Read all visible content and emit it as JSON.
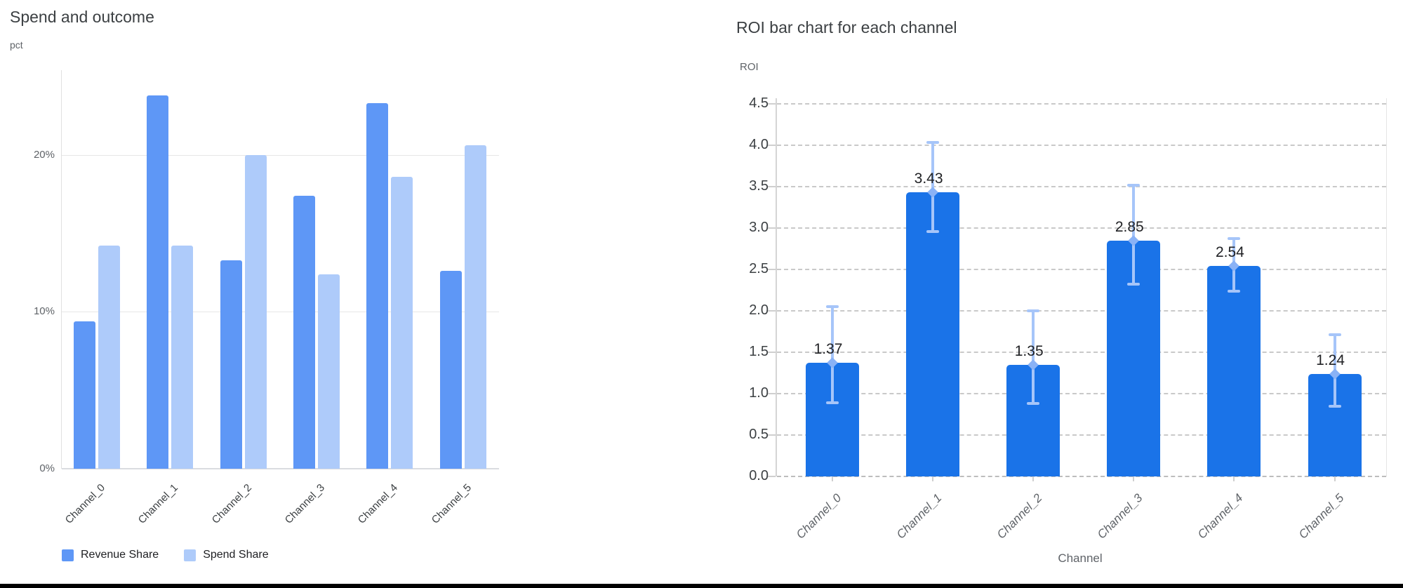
{
  "page": {
    "background": "#ffffff",
    "bottom_border_color": "#000000"
  },
  "chart_data": [
    {
      "type": "bar",
      "title": "Spend and outcome",
      "ylabel": "pct",
      "xlabel": "",
      "categories": [
        "Channel_0",
        "Channel_1",
        "Channel_2",
        "Channel_3",
        "Channel_4",
        "Channel_5"
      ],
      "series": [
        {
          "name": "Revenue Share",
          "color": "#5e97f6",
          "values": [
            9.4,
            23.8,
            13.3,
            17.4,
            23.3,
            12.6
          ]
        },
        {
          "name": "Spend Share",
          "color": "#aecbfa",
          "values": [
            14.2,
            14.2,
            20.0,
            12.4,
            18.6,
            20.6
          ]
        }
      ],
      "yticks": [
        {
          "value": 0,
          "label": "0%"
        },
        {
          "value": 10,
          "label": "10%"
        },
        {
          "value": 20,
          "label": "20%"
        }
      ],
      "ylim": [
        0,
        25.4
      ],
      "grid": "solid",
      "legend_position": "bottom",
      "value_unit": "percent"
    },
    {
      "type": "bar",
      "title": "ROI bar chart for each channel",
      "ylabel": "ROI",
      "xlabel": "Channel",
      "categories": [
        "Channel_0",
        "Channel_1",
        "Channel_2",
        "Channel_3",
        "Channel_4",
        "Channel_5"
      ],
      "values": [
        1.37,
        3.43,
        1.35,
        2.85,
        2.54,
        1.24
      ],
      "value_labels": [
        "1.37",
        "3.43",
        "1.35",
        "2.85",
        "2.54",
        "1.24"
      ],
      "error_low": [
        0.89,
        2.96,
        0.88,
        2.32,
        2.24,
        0.85
      ],
      "error_high": [
        2.05,
        4.03,
        2.0,
        3.52,
        2.87,
        1.71
      ],
      "bar_color": "#1a73e8",
      "error_color": "#a6c5f9",
      "error_marker_color": "#8ab2f6",
      "yticks": [
        {
          "value": 0.0,
          "label": "0.0"
        },
        {
          "value": 0.5,
          "label": "0.5"
        },
        {
          "value": 1.0,
          "label": "1.0"
        },
        {
          "value": 1.5,
          "label": "1.5"
        },
        {
          "value": 2.0,
          "label": "2.0"
        },
        {
          "value": 2.5,
          "label": "2.5"
        },
        {
          "value": 3.0,
          "label": "3.0"
        },
        {
          "value": 3.5,
          "label": "3.5"
        },
        {
          "value": 4.0,
          "label": "4.0"
        },
        {
          "value": 4.5,
          "label": "4.5"
        }
      ],
      "ylim": [
        0,
        4.57
      ],
      "grid": "dashed",
      "legend_position": "none"
    }
  ]
}
